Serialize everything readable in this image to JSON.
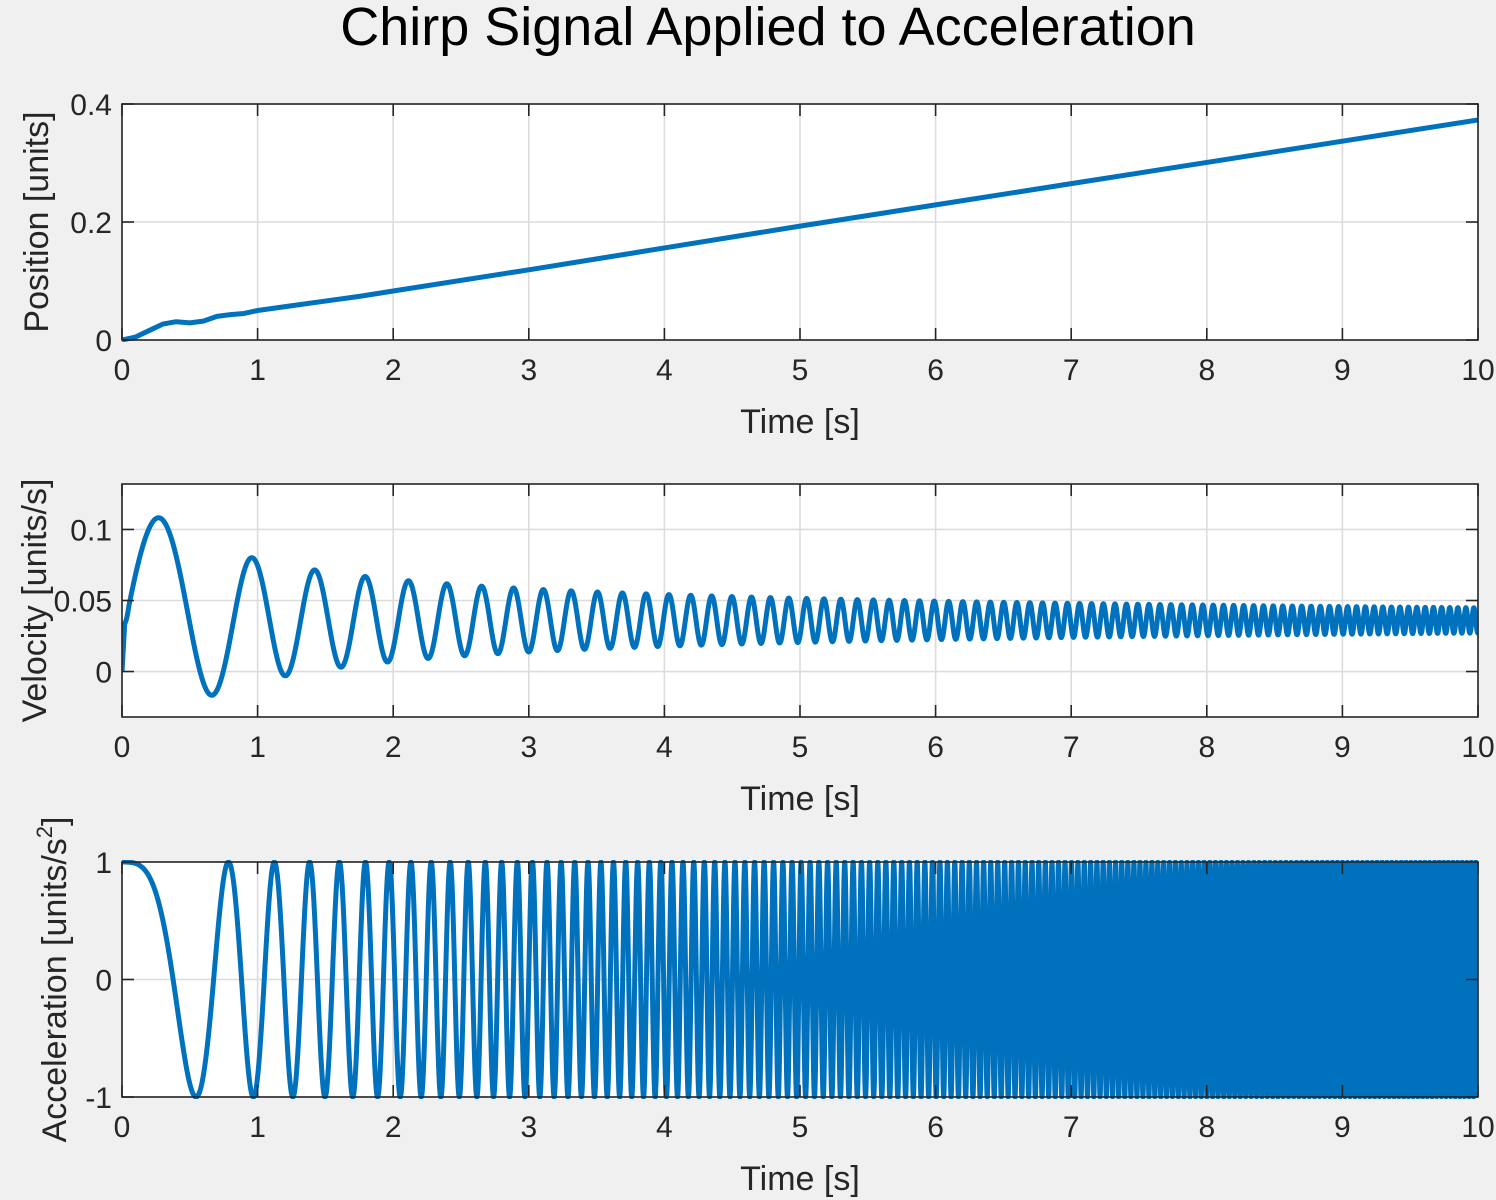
{
  "figure": {
    "title": "Chirp Signal Applied to Acceleration",
    "line_color": "#0072bd",
    "background": "#f0f0f0"
  },
  "chart_data": [
    {
      "type": "line",
      "name": "position",
      "title": "",
      "xlabel": "Time [s]",
      "ylabel": "Position [units]",
      "xlim": [
        0,
        10
      ],
      "ylim": [
        0,
        0.4
      ],
      "xticks": [
        0,
        1,
        2,
        3,
        4,
        5,
        6,
        7,
        8,
        9,
        10
      ],
      "yticks": [
        0,
        0.2,
        0.4
      ],
      "xtick_labels": [
        "0",
        "1",
        "2",
        "3",
        "4",
        "5",
        "6",
        "7",
        "8",
        "9",
        "10"
      ],
      "ytick_labels": [
        "0",
        "0.2",
        "0.4"
      ],
      "grid": true,
      "x": [
        0,
        0.1,
        0.2,
        0.3,
        0.4,
        0.5,
        0.6,
        0.7,
        0.8,
        0.9,
        1.0,
        1.25,
        1.5,
        1.75,
        2,
        3,
        4,
        5,
        6,
        7,
        8,
        9,
        10
      ],
      "y": [
        0,
        0.005,
        0.016,
        0.027,
        0.031,
        0.029,
        0.032,
        0.04,
        0.043,
        0.045,
        0.05,
        0.058,
        0.066,
        0.074,
        0.083,
        0.119,
        0.156,
        0.193,
        0.229,
        0.265,
        0.301,
        0.337,
        0.373
      ]
    },
    {
      "type": "line",
      "name": "velocity",
      "title": "",
      "xlabel": "Time [s]",
      "ylabel": "Velocity [units/s]",
      "xlim": [
        0,
        10
      ],
      "ylim": [
        -0.032,
        0.132
      ],
      "xticks": [
        0,
        1,
        2,
        3,
        4,
        5,
        6,
        7,
        8,
        9,
        10
      ],
      "yticks": [
        0,
        0.05,
        0.1
      ],
      "xtick_labels": [
        "0",
        "1",
        "2",
        "3",
        "4",
        "5",
        "6",
        "7",
        "8",
        "9",
        "10"
      ],
      "ytick_labels": [
        "0",
        "0.05",
        "0.1"
      ],
      "grid": true,
      "mean_value": 0.036,
      "first_peak": {
        "x": 0.2,
        "y": 0.13
      },
      "first_trough": {
        "x": 0.45,
        "y": -0.032
      }
    },
    {
      "type": "line",
      "name": "acceleration",
      "title": "",
      "xlabel": "Time [s]",
      "ylabel": "Acceleration [units/s",
      "ylabel_sup": "2",
      "ylabel_close": "]",
      "xlim": [
        0,
        10
      ],
      "ylim": [
        -1,
        1
      ],
      "xticks": [
        0,
        1,
        2,
        3,
        4,
        5,
        6,
        7,
        8,
        9,
        10
      ],
      "yticks": [
        -1,
        0,
        1
      ],
      "xtick_labels": [
        "0",
        "1",
        "2",
        "3",
        "4",
        "5",
        "6",
        "7",
        "8",
        "9",
        "10"
      ],
      "ytick_labels": [
        "-1",
        "0",
        "1"
      ],
      "grid": true,
      "signal": "cos",
      "start_frequency_hz": 0.1,
      "end_frequency_hz": 30,
      "amplitude": 1
    }
  ]
}
